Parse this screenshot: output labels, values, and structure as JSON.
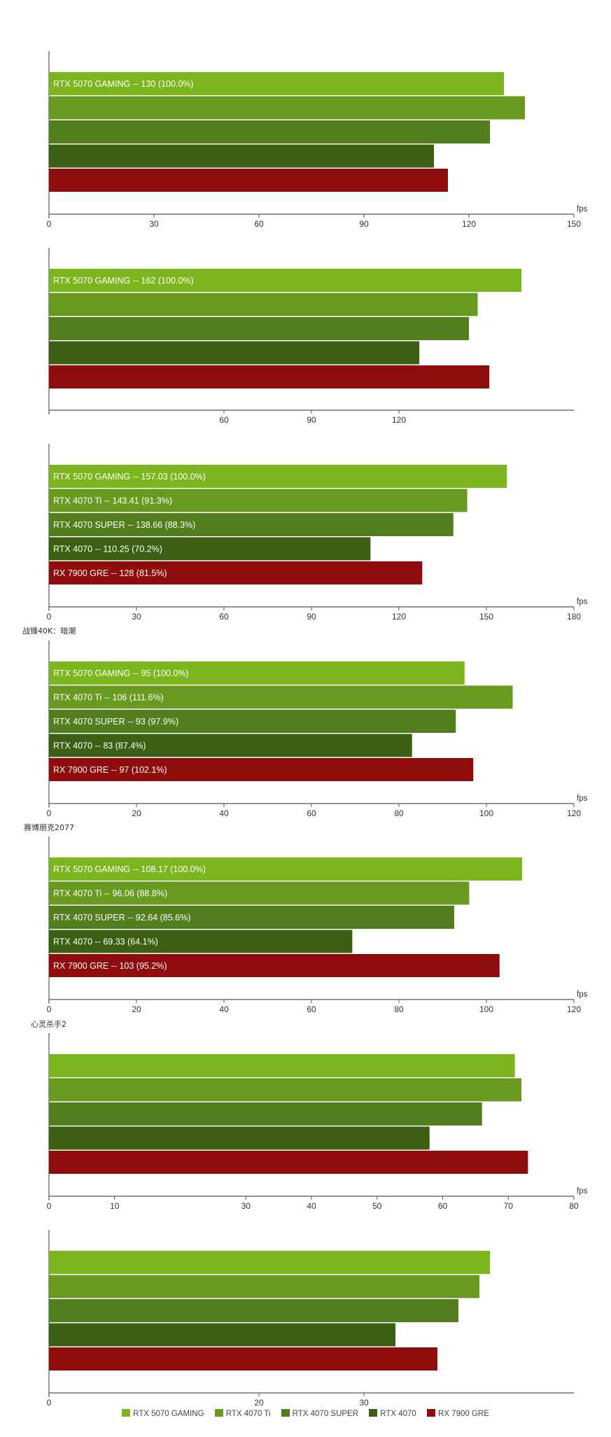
{
  "legend": {
    "items": [
      {
        "label": "RTX 5070 GAMING",
        "color": "#7cb51e"
      },
      {
        "label": "RTX 4070 Ti",
        "color": "#689a1f"
      },
      {
        "label": "RTX 4070 SUPER",
        "color": "#537e1e"
      },
      {
        "label": "RTX 4070",
        "color": "#3d5f14"
      },
      {
        "label": "RX 7900 GRE",
        "color": "#8e0c0c"
      }
    ]
  },
  "chart_data": [
    {
      "type": "bar",
      "orientation": "horizontal",
      "title": "",
      "xlabel": "fps",
      "xlim": [
        0,
        150
      ],
      "xticks": [
        0,
        30,
        60,
        90,
        120,
        150
      ],
      "grid": false,
      "bars": [
        {
          "name": "RTX 5070 GAMING",
          "value": 130,
          "label": "RTX 5070 GAMING  --  130 (100.0%)"
        },
        {
          "name": "RTX 4070 Ti",
          "value": 136,
          "label": ""
        },
        {
          "name": "RTX 4070 SUPER",
          "value": 126,
          "label": ""
        },
        {
          "name": "RTX 4070",
          "value": 110,
          "label": ""
        },
        {
          "name": "RX 7900 GRE",
          "value": 114,
          "label": ""
        }
      ]
    },
    {
      "type": "bar",
      "orientation": "horizontal",
      "title": "",
      "xlabel": "",
      "xlim": [
        0,
        180
      ],
      "xticks": [
        60,
        90,
        120
      ],
      "grid": false,
      "bars": [
        {
          "name": "RTX 5070 GAMING",
          "value": 162,
          "label": "RTX 5070 GAMING  --  162 (100.0%)"
        },
        {
          "name": "RTX 4070 Ti",
          "value": 147,
          "label": ""
        },
        {
          "name": "RTX 4070 SUPER",
          "value": 144,
          "label": ""
        },
        {
          "name": "RTX 4070",
          "value": 127,
          "label": ""
        },
        {
          "name": "RX 7900 GRE",
          "value": 151,
          "label": ""
        }
      ]
    },
    {
      "type": "bar",
      "orientation": "horizontal",
      "title": "",
      "xlabel": "fps",
      "xlim": [
        0,
        180
      ],
      "xticks": [
        0,
        30,
        60,
        90,
        120,
        150,
        180
      ],
      "grid": false,
      "bars": [
        {
          "name": "RTX 5070 GAMING",
          "value": 157.03,
          "label": "RTX 5070 GAMING  --  157.03 (100.0%)"
        },
        {
          "name": "RTX 4070 Ti",
          "value": 143.41,
          "label": "RTX 4070 Ti  --  143.41 (91.3%)"
        },
        {
          "name": "RTX 4070 SUPER",
          "value": 138.66,
          "label": "RTX 4070 SUPER  --  138.66 (88.3%)"
        },
        {
          "name": "RTX 4070",
          "value": 110.25,
          "label": "RTX 4070  --  110.25 (70.2%)"
        },
        {
          "name": "RX 7900 GRE",
          "value": 128,
          "label": "RX 7900 GRE  --  128  (81.5%)"
        }
      ]
    },
    {
      "type": "bar",
      "orientation": "horizontal",
      "title": "战锤40K：暗潮",
      "xlabel": "fps",
      "xlim": [
        0,
        120
      ],
      "xticks": [
        0,
        20,
        40,
        60,
        80,
        100,
        120
      ],
      "grid": false,
      "bars": [
        {
          "name": "RTX 5070 GAMING",
          "value": 95,
          "label": "RTX 5070 GAMING  --  95 (100.0%)"
        },
        {
          "name": "RTX 4070 Ti",
          "value": 106,
          "label": "RTX 4070 Ti  --  106 (111.6%)"
        },
        {
          "name": "RTX 4070 SUPER",
          "value": 93,
          "label": "RTX 4070 SUPER  --  93 (97.9%)"
        },
        {
          "name": "RTX 4070",
          "value": 83,
          "label": "RTX 4070  --  83 (87.4%)"
        },
        {
          "name": "RX 7900 GRE",
          "value": 97,
          "label": "RX 7900 GRE  --  97  (102.1%)"
        }
      ]
    },
    {
      "type": "bar",
      "orientation": "horizontal",
      "title": "赛博朋克2077",
      "xlabel": "fps",
      "xlim": [
        0,
        120
      ],
      "xticks": [
        0,
        20,
        40,
        60,
        80,
        100,
        120
      ],
      "grid": false,
      "bars": [
        {
          "name": "RTX 5070 GAMING",
          "value": 108.17,
          "label": "RTX 5070 GAMING  --  108.17 (100.0%)"
        },
        {
          "name": "RTX 4070 Ti",
          "value": 96.06,
          "label": "RTX 4070 Ti  --  96.06 (88.8%)"
        },
        {
          "name": "RTX 4070 SUPER",
          "value": 92.64,
          "label": "RTX 4070 SUPER  --  92.64 (85.6%)"
        },
        {
          "name": "RTX 4070",
          "value": 69.33,
          "label": "RTX 4070  --  69.33 (64.1%)"
        },
        {
          "name": "RX 7900 GRE",
          "value": 103,
          "label": "RX 7900 GRE  --  103  (95.2%)"
        }
      ]
    },
    {
      "type": "bar",
      "orientation": "horizontal",
      "title": "心灵杀手2",
      "xlabel": "fps",
      "xlim": [
        0,
        80
      ],
      "xticks": [
        0,
        10,
        30,
        40,
        50,
        60,
        70,
        80
      ],
      "grid": false,
      "bars": [
        {
          "name": "RTX 5070 GAMING",
          "value": 71,
          "label": ""
        },
        {
          "name": "RTX 4070 Ti",
          "value": 72,
          "label": ""
        },
        {
          "name": "RTX 4070 SUPER",
          "value": 66,
          "label": ""
        },
        {
          "name": "RTX 4070",
          "value": 58,
          "label": ""
        },
        {
          "name": "RX 7900 GRE",
          "value": 73,
          "label": ""
        }
      ]
    },
    {
      "type": "bar",
      "orientation": "horizontal",
      "title": "",
      "xlabel": "",
      "xlim": [
        0,
        50
      ],
      "xticks": [
        0,
        20,
        30
      ],
      "grid": false,
      "bars": [
        {
          "name": "RTX 5070 GAMING",
          "value": 42,
          "label": ""
        },
        {
          "name": "RTX 4070 Ti",
          "value": 41,
          "label": ""
        },
        {
          "name": "RTX 4070 SUPER",
          "value": 39,
          "label": ""
        },
        {
          "name": "RTX 4070",
          "value": 33,
          "label": ""
        },
        {
          "name": "RX 7900 GRE",
          "value": 37,
          "label": ""
        }
      ]
    }
  ]
}
